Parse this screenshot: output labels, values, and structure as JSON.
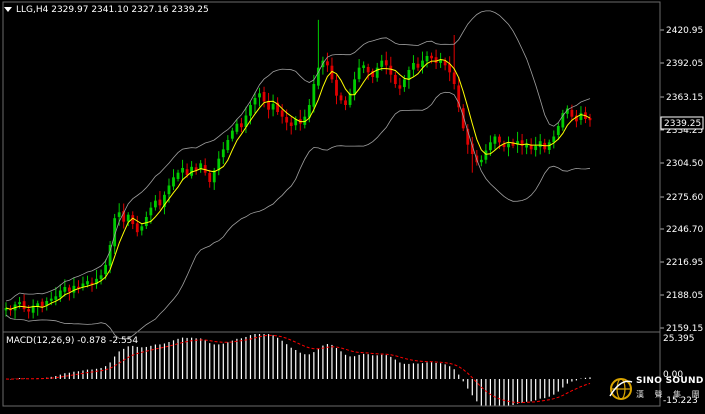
{
  "header": {
    "symbol": "LLG,H4",
    "open": "2329.97",
    "high": "2341.10",
    "low": "2327.16",
    "close": "2339.25"
  },
  "price_axis_labels": [
    "2420.95",
    "2392.05",
    "2363.15",
    "2334.25",
    "2304.50",
    "2275.60",
    "2246.70",
    "2216.95",
    "2188.05",
    "2159.15"
  ],
  "current_price_label": "2339.25",
  "macd": {
    "label": "MACD(12,26,9)",
    "main": "-0.878",
    "signal": "-2.554",
    "axis_labels": [
      "25.395",
      "0.00",
      "-15.223"
    ]
  },
  "logo": {
    "brand": "SINO SOUND",
    "sub": "漢 聲 集 團"
  },
  "colors": {
    "background": "#000000",
    "bull": "#00cc00",
    "bear": "#e00000",
    "ma": "#ffff00",
    "bands": "#a0a0a0",
    "macd_hist": "#ffffff",
    "macd_signal": "#ff0000"
  },
  "chart_data": {
    "type": "candlestick",
    "ylim": [
      2159.15,
      2430
    ],
    "macd_ylim": [
      -15.223,
      25.395
    ],
    "closes": [
      2178,
      2176,
      2181,
      2183,
      2177,
      2175,
      2180,
      2182,
      2179,
      2184,
      2186,
      2188,
      2193,
      2196,
      2192,
      2197,
      2195,
      2199,
      2201,
      2198,
      2203,
      2206,
      2215,
      2232,
      2255,
      2260,
      2252,
      2258,
      2250,
      2243,
      2248,
      2256,
      2264,
      2270,
      2266,
      2275,
      2283,
      2290,
      2294,
      2298,
      2292,
      2299,
      2296,
      2302,
      2294,
      2286,
      2296,
      2306,
      2314,
      2322,
      2330,
      2336,
      2333,
      2343,
      2352,
      2358,
      2362,
      2355,
      2348,
      2353,
      2346,
      2342,
      2337,
      2334,
      2340,
      2336,
      2342,
      2352,
      2370,
      2384,
      2390,
      2386,
      2374,
      2360,
      2356,
      2352,
      2362,
      2374,
      2384,
      2386,
      2380,
      2376,
      2384,
      2390,
      2386,
      2378,
      2370,
      2366,
      2374,
      2382,
      2388,
      2384,
      2390,
      2394,
      2392,
      2388,
      2391,
      2386,
      2380,
      2370,
      2350,
      2332,
      2318,
      2310,
      2303,
      2305,
      2313,
      2320,
      2325,
      2320,
      2316,
      2319,
      2317,
      2321,
      2317,
      2319,
      2314,
      2317,
      2321,
      2314,
      2320,
      2325,
      2334,
      2345,
      2349,
      2342,
      2338,
      2345,
      2340,
      2339
    ]
  }
}
